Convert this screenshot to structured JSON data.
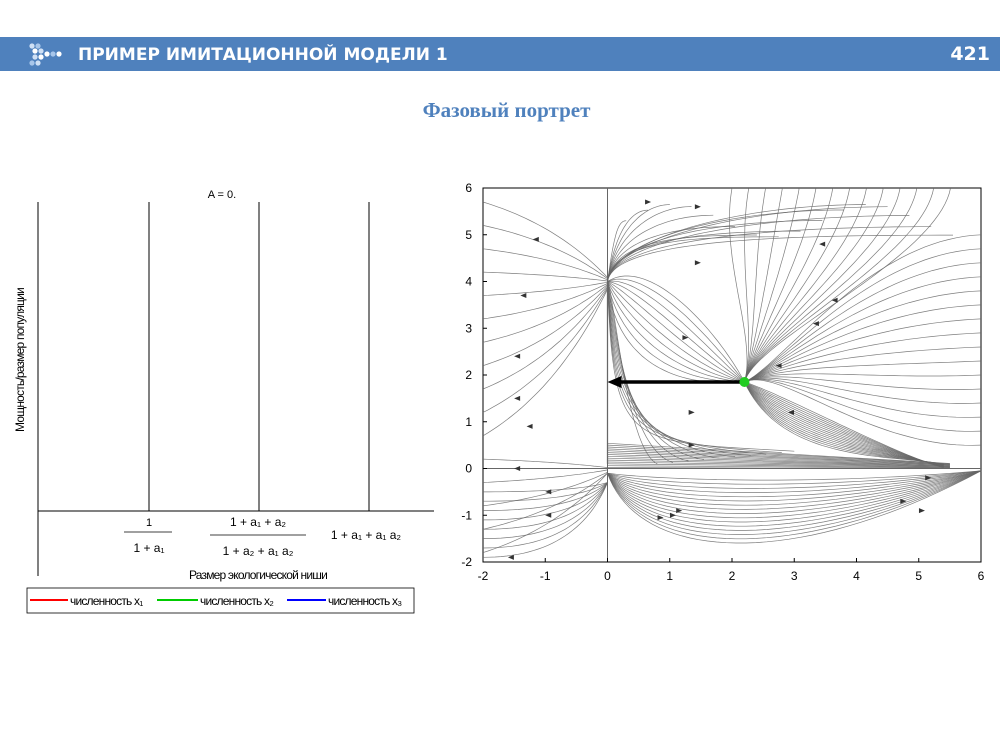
{
  "header": {
    "title": "ПРИМЕР ИМИТАЦИОННОЙ МОДЕЛИ 1",
    "page_number": "421",
    "accent_color": "#4f81bd"
  },
  "subtitle": "Фазовый портрет",
  "chart_data": [
    {
      "type": "line",
      "title": "A = 0.",
      "xlabel": "Размер экологической ниши",
      "ylabel": "Мощность/размер популяции",
      "x_ticks": [
        {
          "num": "1",
          "den": "1 + a₁"
        },
        {
          "num": "1 + a₁ + a₂",
          "den": "1 + a₂ + a₁ a₂"
        },
        {
          "num": "1 + a₁ + a₁ a₂",
          "den": ""
        }
      ],
      "vertical_lines": 3,
      "series": [
        {
          "name": "численность x₁",
          "color": "#ff0000",
          "values": []
        },
        {
          "name": "численность x₂",
          "color": "#00cc00",
          "values": []
        },
        {
          "name": "численность x₃",
          "color": "#0000ff",
          "values": []
        }
      ],
      "legend": "bottom"
    },
    {
      "type": "line",
      "title": "",
      "xlim": [
        -2,
        6
      ],
      "ylim": [
        -2,
        6
      ],
      "x_ticks": [
        "-2",
        "-1",
        "0",
        "1",
        "2",
        "3",
        "4",
        "5",
        "6"
      ],
      "y_ticks": [
        "-2",
        "-1",
        "0",
        "1",
        "2",
        "3",
        "4",
        "5",
        "6"
      ],
      "equilibrium": {
        "x": 2.2,
        "y": 1.85,
        "color": "#22cc22"
      },
      "arrow": {
        "from": [
          2.15,
          1.85
        ],
        "to": [
          0.0,
          1.85
        ]
      },
      "nodes": [
        [
          0,
          4
        ],
        [
          2.2,
          1.85
        ],
        [
          0,
          0
        ],
        [
          5.4,
          0
        ]
      ],
      "grid": false,
      "trajectory_color": "#666666"
    }
  ]
}
